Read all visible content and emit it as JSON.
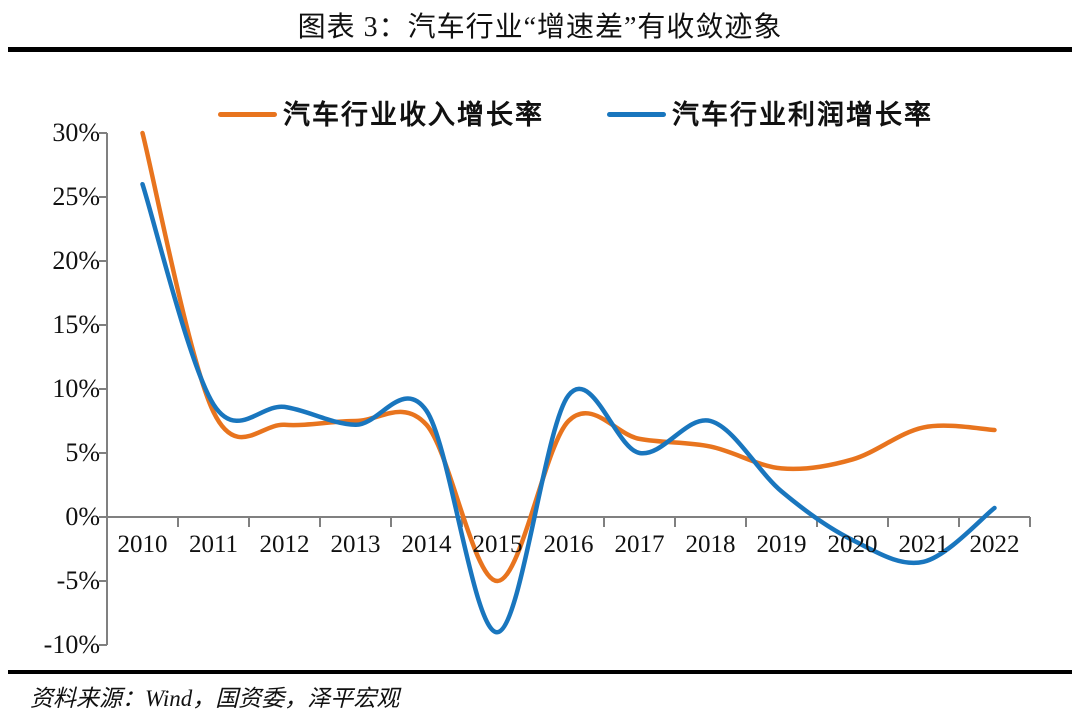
{
  "title": "图表 3：汽车行业“增速差”有收敛迹象",
  "source": "资料来源：Wind，国资委，泽平宏观",
  "colors": {
    "revenue_line": "#E8741E",
    "profit_line": "#1976BE",
    "axis": "#808080",
    "divider": "#000000",
    "text": "#111111"
  },
  "chart_data": {
    "type": "line",
    "smooth": true,
    "grid": false,
    "legend_position": "top",
    "title": "图表 3：汽车行业“增速差”有收敛迹象",
    "xlabel": "",
    "ylabel": "",
    "categories": [
      "2010",
      "2011",
      "2012",
      "2013",
      "2014",
      "2015",
      "2016",
      "2017",
      "2018",
      "2019",
      "2020",
      "2021",
      "2022"
    ],
    "series": [
      {
        "name": "汽车行业收入增长率",
        "color": "#E8741E",
        "values": [
          30,
          8.2,
          7.2,
          7.5,
          7.2,
          -5,
          7.5,
          6.1,
          5.5,
          3.8,
          4.5,
          7,
          6.8
        ]
      },
      {
        "name": "汽车行业利润增长率",
        "color": "#1976BE",
        "values": [
          26,
          8.8,
          8.6,
          7.2,
          8.3,
          -9,
          9.5,
          5,
          7.5,
          2,
          -1.8,
          -3.5,
          0.7
        ]
      }
    ],
    "ylim": [
      -10,
      30
    ],
    "y_tick_step": 5,
    "y_tick_labels": [
      "30%",
      "25%",
      "20%",
      "15%",
      "10%",
      "5%",
      "0%",
      "-5%",
      "-10%"
    ]
  }
}
